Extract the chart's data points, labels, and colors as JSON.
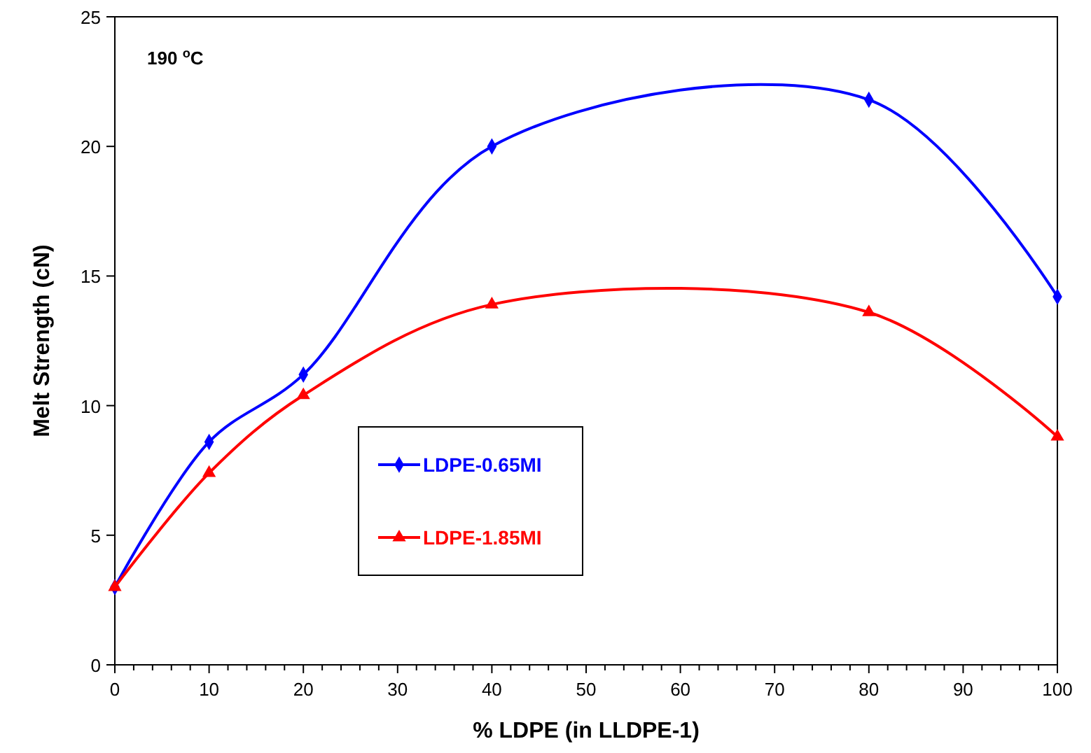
{
  "chart_data": {
    "type": "line",
    "xlabel": "% LDPE (in LLDPE-1)",
    "ylabel": "Melt Strength (cN)",
    "annotations": [
      "190 $^{o}$C"
    ],
    "x": [
      0,
      10,
      20,
      40,
      80,
      100
    ],
    "series": [
      {
        "name": "LDPE-0.65MI",
        "color": "#0000ff",
        "marker": "diamond",
        "values": [
          3,
          8.6,
          11.2,
          20,
          21.8,
          14.2
        ]
      },
      {
        "name": "LDPE-1.85MI",
        "color": "#ff0000",
        "marker": "triangle",
        "values": [
          3,
          7.4,
          10.4,
          13.9,
          13.6,
          8.8
        ]
      }
    ],
    "xlim": [
      0,
      100
    ],
    "ylim": [
      0,
      25
    ],
    "xticks": [
      0,
      {
        "value": 2,
        "label": null
      },
      {
        "value": 4,
        "label": null
      },
      {
        "value": 6,
        "label": null
      },
      {
        "value": 8,
        "label": null
      },
      10,
      {
        "value": 12,
        "label": null
      },
      {
        "value": 14,
        "label": null
      },
      {
        "value": 16,
        "label": null
      },
      {
        "value": 18,
        "label": null
      },
      20,
      {
        "value": 22,
        "label": null
      },
      {
        "value": 24,
        "label": null
      },
      {
        "value": 26,
        "label": null
      },
      {
        "value": 28,
        "label": null
      },
      30,
      {
        "value": 32,
        "label": null
      },
      {
        "value": 34,
        "label": null
      },
      {
        "value": 36,
        "label": null
      },
      {
        "value": 38,
        "label": null
      },
      40,
      {
        "value": 42,
        "label": null
      },
      {
        "value": 44,
        "label": null
      },
      {
        "value": 46,
        "label": null
      },
      {
        "value": 48,
        "label": null
      },
      50,
      {
        "value": 52,
        "label": null
      },
      {
        "value": 54,
        "label": null
      },
      {
        "value": 56,
        "label": null
      },
      {
        "value": 58,
        "label": null
      },
      60,
      {
        "value": 62,
        "label": null
      },
      {
        "value": 64,
        "label": null
      },
      {
        "value": 66,
        "label": null
      },
      {
        "value": 68,
        "label": null
      },
      70,
      {
        "value": 72,
        "label": null
      },
      {
        "value": 74,
        "label": null
      },
      {
        "value": 76,
        "label": null
      },
      {
        "value": 78,
        "label": null
      },
      80,
      {
        "value": 82,
        "label": null
      },
      {
        "value": 84,
        "label": null
      },
      {
        "value": 86,
        "label": null
      },
      {
        "value": 88,
        "label": null
      },
      90,
      {
        "value": 92,
        "label": null
      },
      {
        "value": 94,
        "label": null
      },
      {
        "value": 96,
        "label": null
      },
      {
        "value": 98,
        "label": null
      },
      100
    ],
    "yticks": [
      0,
      5,
      10,
      15,
      20,
      25
    ],
    "grid": false,
    "legend": "left",
    "line_style": "solid"
  }
}
